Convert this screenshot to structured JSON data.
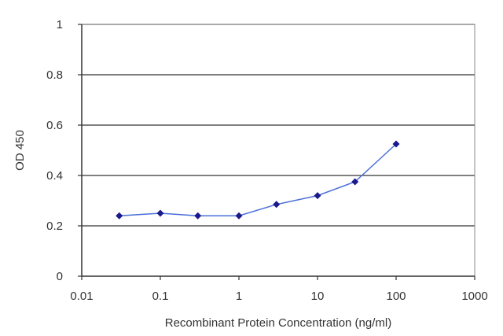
{
  "chart_data": {
    "type": "line",
    "title": "",
    "xlabel": "Recombinant Protein Concentration (ng/ml)",
    "ylabel": "OD 450",
    "xscale": "log",
    "xlim": [
      0.01,
      1000
    ],
    "ylim": [
      0,
      1
    ],
    "x_ticks": [
      "0.01",
      "0.1",
      "1",
      "10",
      "100",
      "1000"
    ],
    "y_ticks": [
      "0",
      "0.2",
      "0.4",
      "0.6",
      "0.8",
      "1"
    ],
    "grid": "horizontal",
    "legend": "none",
    "series": [
      {
        "color": "#1a1a8c",
        "marker": "diamond",
        "x": [
          0.03,
          0.1,
          0.3,
          1,
          3,
          10,
          30,
          100
        ],
        "y": [
          0.24,
          0.25,
          0.24,
          0.24,
          0.285,
          0.32,
          0.375,
          0.525
        ]
      }
    ],
    "colors": {
      "line": "#4a6fd8",
      "marker": "#1a1a8c",
      "grid": "#333333",
      "frame": "#888888"
    }
  }
}
